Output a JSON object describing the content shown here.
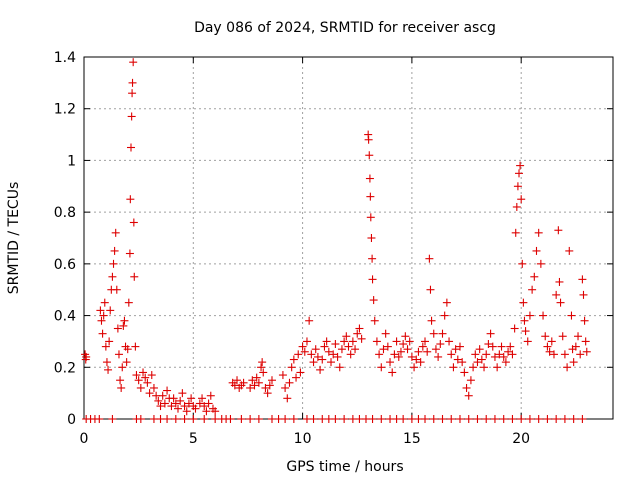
{
  "chart_data": {
    "type": "scatter",
    "title": "Day 086 of 2024, SRMTID for receiver ascg",
    "xlabel": "GPS time / hours",
    "ylabel": "SRMTID / TECUs",
    "xlim": [
      0,
      24.2
    ],
    "ylim": [
      0,
      1.4
    ],
    "xticks": [
      0,
      5,
      10,
      15,
      20
    ],
    "xtick_labels": [
      "0",
      "5",
      "10",
      "15",
      "20"
    ],
    "yticks": [
      0,
      0.2,
      0.4,
      0.6,
      0.8,
      1.0,
      1.2,
      1.4
    ],
    "ytick_labels": [
      "0",
      "0.2",
      "0.4",
      "0.6",
      "0.8",
      "1",
      "1.2",
      "1.4"
    ],
    "grid": true,
    "marker": "plus",
    "series": [
      {
        "name": "SRMTID",
        "color": "#dd0000",
        "points": [
          [
            0.05,
            0.25
          ],
          [
            0.08,
            0.23
          ],
          [
            0.1,
            0.24
          ],
          [
            0.75,
            0.42
          ],
          [
            0.8,
            0.38
          ],
          [
            0.85,
            0.33
          ],
          [
            0.9,
            0.4
          ],
          [
            0.95,
            0.45
          ],
          [
            1.0,
            0.28
          ],
          [
            1.05,
            0.22
          ],
          [
            1.1,
            0.19
          ],
          [
            1.15,
            0.3
          ],
          [
            1.2,
            0.42
          ],
          [
            1.25,
            0.5
          ],
          [
            1.3,
            0.55
          ],
          [
            1.35,
            0.6
          ],
          [
            1.4,
            0.65
          ],
          [
            1.45,
            0.72
          ],
          [
            1.5,
            0.5
          ],
          [
            1.55,
            0.35
          ],
          [
            1.6,
            0.25
          ],
          [
            1.65,
            0.15
          ],
          [
            1.7,
            0.12
          ],
          [
            1.75,
            0.2
          ],
          [
            1.8,
            0.36
          ],
          [
            1.85,
            0.38
          ],
          [
            1.9,
            0.28
          ],
          [
            1.95,
            0.22
          ],
          [
            2.0,
            0.27
          ],
          [
            2.05,
            0.45
          ],
          [
            2.1,
            0.64
          ],
          [
            2.12,
            0.85
          ],
          [
            2.15,
            1.05
          ],
          [
            2.18,
            1.17
          ],
          [
            2.2,
            1.26
          ],
          [
            2.22,
            1.3
          ],
          [
            2.25,
            1.38
          ],
          [
            2.28,
            0.76
          ],
          [
            2.3,
            0.55
          ],
          [
            2.35,
            0.28
          ],
          [
            2.4,
            0.17
          ],
          [
            2.5,
            0.15
          ],
          [
            2.6,
            0.12
          ],
          [
            2.7,
            0.18
          ],
          [
            2.8,
            0.16
          ],
          [
            2.9,
            0.14
          ],
          [
            3.0,
            0.1
          ],
          [
            3.1,
            0.17
          ],
          [
            3.2,
            0.12
          ],
          [
            3.3,
            0.09
          ],
          [
            3.4,
            0.07
          ],
          [
            3.5,
            0.05
          ],
          [
            3.6,
            0.09
          ],
          [
            3.7,
            0.06
          ],
          [
            3.8,
            0.11
          ],
          [
            3.9,
            0.08
          ],
          [
            4.0,
            0.05
          ],
          [
            4.1,
            0.08
          ],
          [
            4.2,
            0.06
          ],
          [
            4.3,
            0.04
          ],
          [
            4.4,
            0.07
          ],
          [
            4.5,
            0.1
          ],
          [
            4.6,
            0.05
          ],
          [
            4.7,
            0.03
          ],
          [
            4.8,
            0.06
          ],
          [
            4.9,
            0.08
          ],
          [
            5.0,
            0.05
          ],
          [
            5.1,
            0.04
          ],
          [
            5.3,
            0.06
          ],
          [
            5.4,
            0.08
          ],
          [
            5.5,
            0.05
          ],
          [
            5.6,
            0.03
          ],
          [
            5.7,
            0.06
          ],
          [
            5.8,
            0.09
          ],
          [
            5.9,
            0.04
          ],
          [
            6.0,
            0.03
          ],
          [
            6.8,
            0.14
          ],
          [
            6.9,
            0.13
          ],
          [
            7.0,
            0.15
          ],
          [
            7.1,
            0.12
          ],
          [
            7.2,
            0.13
          ],
          [
            7.3,
            0.14
          ],
          [
            7.6,
            0.12
          ],
          [
            7.7,
            0.15
          ],
          [
            7.8,
            0.13
          ],
          [
            7.9,
            0.16
          ],
          [
            8.0,
            0.14
          ],
          [
            8.1,
            0.2
          ],
          [
            8.15,
            0.22
          ],
          [
            8.2,
            0.18
          ],
          [
            8.3,
            0.12
          ],
          [
            8.4,
            0.1
          ],
          [
            8.5,
            0.13
          ],
          [
            8.6,
            0.15
          ],
          [
            9.1,
            0.17
          ],
          [
            9.2,
            0.12
          ],
          [
            9.3,
            0.08
          ],
          [
            9.4,
            0.14
          ],
          [
            9.5,
            0.2
          ],
          [
            9.6,
            0.23
          ],
          [
            9.7,
            0.16
          ],
          [
            9.8,
            0.25
          ],
          [
            9.9,
            0.18
          ],
          [
            10.0,
            0.28
          ],
          [
            10.1,
            0.26
          ],
          [
            10.2,
            0.3
          ],
          [
            10.3,
            0.38
          ],
          [
            10.4,
            0.25
          ],
          [
            10.5,
            0.22
          ],
          [
            10.6,
            0.27
          ],
          [
            10.7,
            0.24
          ],
          [
            10.8,
            0.19
          ],
          [
            10.9,
            0.23
          ],
          [
            11.0,
            0.28
          ],
          [
            11.1,
            0.3
          ],
          [
            11.2,
            0.26
          ],
          [
            11.3,
            0.22
          ],
          [
            11.4,
            0.25
          ],
          [
            11.5,
            0.29
          ],
          [
            11.6,
            0.24
          ],
          [
            11.7,
            0.2
          ],
          [
            11.8,
            0.27
          ],
          [
            11.9,
            0.3
          ],
          [
            12.0,
            0.32
          ],
          [
            12.1,
            0.28
          ],
          [
            12.2,
            0.25
          ],
          [
            12.3,
            0.3
          ],
          [
            12.4,
            0.27
          ],
          [
            12.5,
            0.33
          ],
          [
            12.6,
            0.35
          ],
          [
            12.7,
            0.31
          ],
          [
            13.0,
            1.1
          ],
          [
            13.02,
            1.08
          ],
          [
            13.05,
            1.02
          ],
          [
            13.08,
            0.93
          ],
          [
            13.1,
            0.86
          ],
          [
            13.12,
            0.78
          ],
          [
            13.15,
            0.7
          ],
          [
            13.18,
            0.62
          ],
          [
            13.2,
            0.54
          ],
          [
            13.25,
            0.46
          ],
          [
            13.3,
            0.38
          ],
          [
            13.4,
            0.3
          ],
          [
            13.5,
            0.25
          ],
          [
            13.6,
            0.2
          ],
          [
            13.7,
            0.27
          ],
          [
            13.8,
            0.33
          ],
          [
            13.9,
            0.28
          ],
          [
            14.0,
            0.22
          ],
          [
            14.1,
            0.18
          ],
          [
            14.2,
            0.25
          ],
          [
            14.3,
            0.3
          ],
          [
            14.4,
            0.24
          ],
          [
            14.5,
            0.26
          ],
          [
            14.6,
            0.29
          ],
          [
            14.7,
            0.32
          ],
          [
            14.8,
            0.27
          ],
          [
            14.9,
            0.3
          ],
          [
            15.0,
            0.24
          ],
          [
            15.1,
            0.2
          ],
          [
            15.2,
            0.23
          ],
          [
            15.3,
            0.26
          ],
          [
            15.4,
            0.22
          ],
          [
            15.5,
            0.28
          ],
          [
            15.6,
            0.3
          ],
          [
            15.7,
            0.26
          ],
          [
            15.8,
            0.62
          ],
          [
            15.85,
            0.5
          ],
          [
            15.9,
            0.38
          ],
          [
            16.0,
            0.33
          ],
          [
            16.1,
            0.27
          ],
          [
            16.2,
            0.24
          ],
          [
            16.3,
            0.29
          ],
          [
            16.4,
            0.33
          ],
          [
            16.5,
            0.4
          ],
          [
            16.6,
            0.45
          ],
          [
            16.7,
            0.3
          ],
          [
            16.8,
            0.25
          ],
          [
            16.9,
            0.2
          ],
          [
            17.0,
            0.27
          ],
          [
            17.1,
            0.23
          ],
          [
            17.2,
            0.28
          ],
          [
            17.3,
            0.22
          ],
          [
            17.4,
            0.18
          ],
          [
            17.5,
            0.12
          ],
          [
            17.6,
            0.09
          ],
          [
            17.7,
            0.15
          ],
          [
            17.8,
            0.2
          ],
          [
            17.9,
            0.25
          ],
          [
            18.0,
            0.22
          ],
          [
            18.1,
            0.27
          ],
          [
            18.2,
            0.23
          ],
          [
            18.3,
            0.2
          ],
          [
            18.4,
            0.25
          ],
          [
            18.5,
            0.29
          ],
          [
            18.6,
            0.33
          ],
          [
            18.7,
            0.28
          ],
          [
            18.8,
            0.24
          ],
          [
            18.9,
            0.2
          ],
          [
            19.0,
            0.25
          ],
          [
            19.1,
            0.28
          ],
          [
            19.2,
            0.24
          ],
          [
            19.3,
            0.22
          ],
          [
            19.4,
            0.26
          ],
          [
            19.5,
            0.28
          ],
          [
            19.6,
            0.25
          ],
          [
            19.7,
            0.35
          ],
          [
            19.75,
            0.72
          ],
          [
            19.8,
            0.82
          ],
          [
            19.85,
            0.9
          ],
          [
            19.9,
            0.95
          ],
          [
            19.95,
            0.98
          ],
          [
            20.0,
            0.85
          ],
          [
            20.05,
            0.6
          ],
          [
            20.1,
            0.45
          ],
          [
            20.15,
            0.38
          ],
          [
            20.2,
            0.34
          ],
          [
            20.3,
            0.3
          ],
          [
            20.4,
            0.4
          ],
          [
            20.5,
            0.5
          ],
          [
            20.6,
            0.55
          ],
          [
            20.7,
            0.65
          ],
          [
            20.8,
            0.72
          ],
          [
            20.9,
            0.6
          ],
          [
            21.0,
            0.4
          ],
          [
            21.1,
            0.32
          ],
          [
            21.2,
            0.28
          ],
          [
            21.3,
            0.26
          ],
          [
            21.4,
            0.3
          ],
          [
            21.5,
            0.25
          ],
          [
            21.6,
            0.48
          ],
          [
            21.7,
            0.73
          ],
          [
            21.75,
            0.53
          ],
          [
            21.8,
            0.45
          ],
          [
            21.9,
            0.32
          ],
          [
            22.0,
            0.25
          ],
          [
            22.1,
            0.2
          ],
          [
            22.2,
            0.65
          ],
          [
            22.3,
            0.4
          ],
          [
            22.35,
            0.27
          ],
          [
            22.4,
            0.22
          ],
          [
            22.5,
            0.28
          ],
          [
            22.6,
            0.32
          ],
          [
            22.7,
            0.25
          ],
          [
            22.8,
            0.54
          ],
          [
            22.85,
            0.48
          ],
          [
            22.9,
            0.38
          ],
          [
            22.95,
            0.3
          ],
          [
            23.0,
            0.26
          ]
        ],
        "zero_points": [
          0.1,
          0.3,
          0.5,
          0.7,
          1.3,
          2.4,
          2.6,
          3.2,
          3.5,
          3.8,
          4.2,
          4.6,
          5.0,
          5.5,
          6.0,
          6.3,
          6.5,
          6.7,
          7.2,
          7.6,
          8.0,
          8.6,
          8.9,
          9.2,
          9.6,
          10.2,
          10.5,
          10.9,
          11.2,
          11.5,
          11.9,
          12.3,
          12.6,
          12.9,
          13.2,
          13.6,
          14.0,
          14.3,
          14.6,
          15.0,
          15.3,
          15.6,
          16.0,
          16.4,
          16.8,
          17.2,
          17.6,
          18.0,
          18.4,
          18.8,
          19.2,
          19.6,
          20.0,
          20.4,
          20.8,
          21.2,
          21.6,
          22.0,
          22.4,
          22.8
        ]
      }
    ]
  }
}
